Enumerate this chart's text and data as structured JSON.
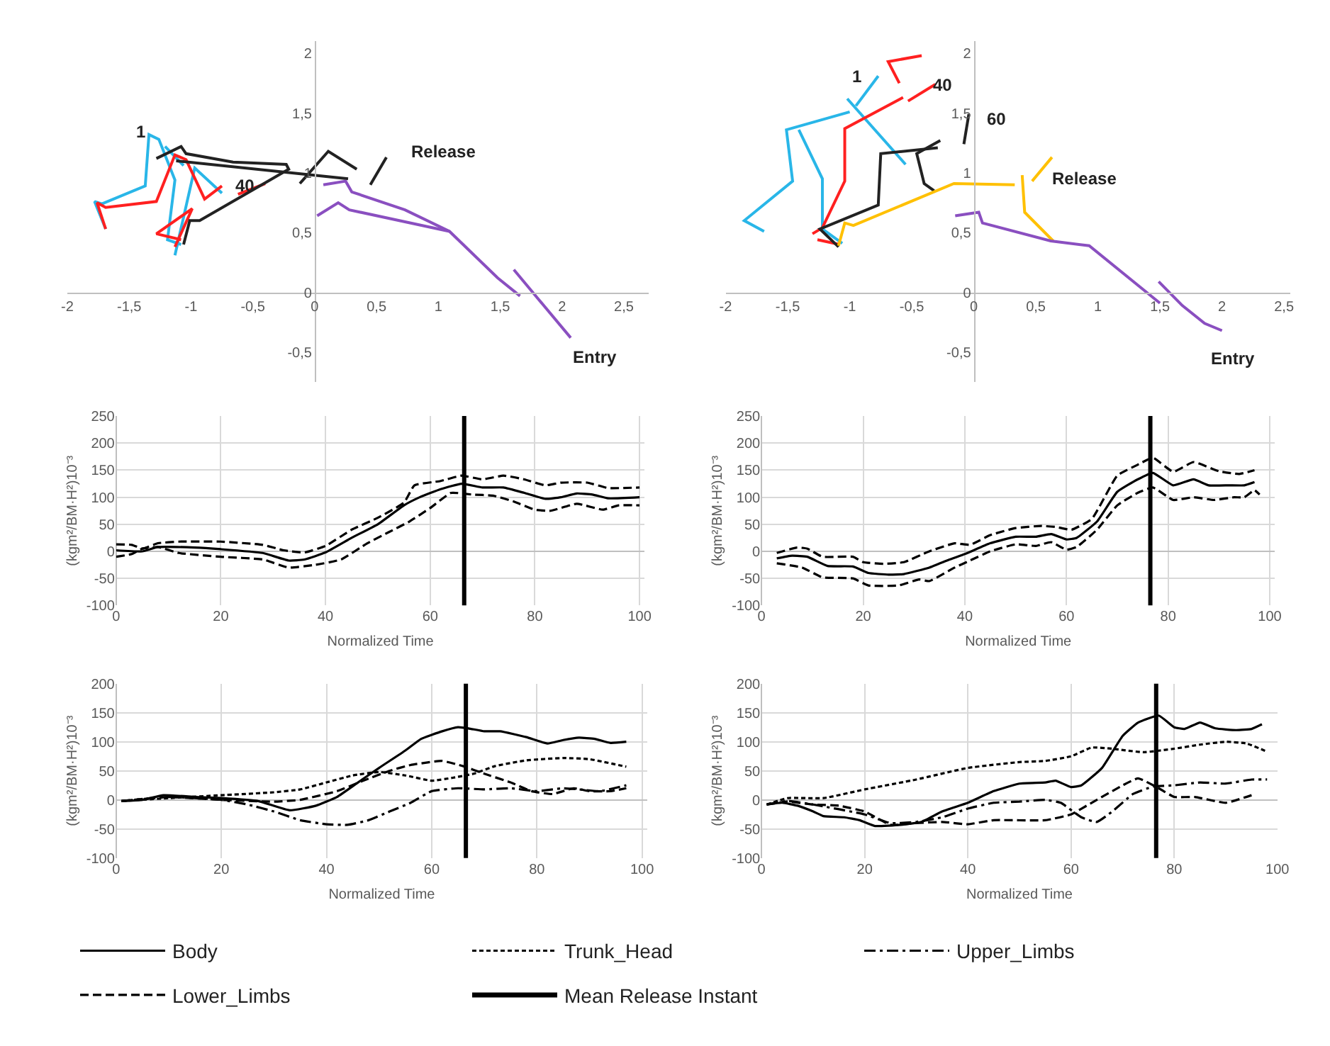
{
  "chart_data": [
    {
      "type": "line",
      "xlim": [
        -2,
        2.7
      ],
      "ylim": [
        -0.75,
        2.1
      ],
      "grid": false,
      "xticks": [
        -2,
        {
          "value": -1.5,
          "label": "-1,5"
        },
        -1,
        {
          "value": -0.5,
          "label": "-0,5"
        },
        0,
        {
          "value": 0.5,
          "label": "0,5"
        },
        1,
        {
          "value": 1.5,
          "label": "1,5"
        },
        2,
        {
          "value": 2.5,
          "label": "2,5"
        }
      ],
      "yticks": [
        {
          "value": -0.5,
          "label": "-0,5"
        },
        0,
        {
          "value": 0.5,
          "label": "0,5"
        },
        1,
        {
          "value": 1.5,
          "label": "1,5"
        },
        2
      ],
      "series": [
        {
          "color": "#29b6e8",
          "x": [
            -1.69,
            -1.78,
            -1.72,
            -1.37,
            -1.34,
            -1.26,
            -1.13,
            -1.19,
            -1.08,
            null,
            -1.13,
            -0.97,
            -0.75,
            null,
            -1.21,
            -1.06
          ],
          "values": [
            0.53,
            0.76,
            0.74,
            0.89,
            1.32,
            1.28,
            0.94,
            0.44,
            0.4,
            null,
            0.31,
            1.04,
            0.83,
            null,
            1.22,
            1.06
          ]
        },
        {
          "color": "#ff2020",
          "x": [
            -1.69,
            -1.76,
            -1.69,
            -1.28,
            -1.13,
            -1.04,
            -0.89,
            -0.75,
            null,
            -1.13,
            -0.99,
            -1.28,
            -1.08,
            null,
            -0.62,
            -0.4
          ],
          "values": [
            0.53,
            0.75,
            0.71,
            0.76,
            1.15,
            1.11,
            0.78,
            0.89,
            null,
            0.38,
            0.7,
            0.49,
            0.44,
            null,
            0.82,
            0.91
          ]
        },
        {
          "color": "#222222",
          "x": [
            -1.28,
            -1.08,
            -1.04,
            -0.66,
            -0.23,
            -0.21,
            -0.93,
            -1.01,
            -1.06,
            null,
            -1.12,
            0.27,
            null,
            -0.12,
            0.11,
            0.34,
            null,
            0.45,
            0.58
          ],
          "values": [
            1.12,
            1.22,
            1.16,
            1.09,
            1.07,
            1.03,
            0.6,
            0.6,
            0.4,
            null,
            1.1,
            0.95,
            null,
            0.91,
            1.18,
            1.03,
            null,
            0.9,
            1.13
          ]
        },
        {
          "color": "#8a4fc0",
          "x": [
            0.07,
            0.25,
            0.3,
            0.73,
            1.09,
            1.48,
            1.66,
            null,
            0.02,
            0.19,
            0.28,
            1.09,
            null,
            1.61,
            2.07
          ],
          "values": [
            0.9,
            0.93,
            0.84,
            0.69,
            0.51,
            0.12,
            -0.03,
            null,
            0.64,
            0.75,
            0.69,
            0.51,
            null,
            0.19,
            -0.38
          ]
        }
      ],
      "annotations": [
        "1",
        "40",
        "Release",
        "Entry"
      ]
    },
    {
      "type": "line",
      "xlim": [
        -2,
        2.55
      ],
      "ylim": [
        -0.75,
        2.1
      ],
      "grid": false,
      "xticks": [
        -2,
        {
          "value": -1.5,
          "label": "-1,5"
        },
        -1,
        {
          "value": -0.5,
          "label": "-0,5"
        },
        0,
        {
          "value": 0.5,
          "label": "0,5"
        },
        1,
        {
          "value": 1.5,
          "label": "1,5"
        },
        2,
        {
          "value": 2.5,
          "label": "2,5"
        }
      ],
      "yticks": [
        {
          "value": -0.5,
          "label": "-0,5"
        },
        0,
        {
          "value": 0.5,
          "label": "0,5"
        },
        1,
        {
          "value": 1.5,
          "label": "1,5"
        },
        2
      ],
      "series": [
        {
          "color": "#29b6e8",
          "x": [
            -1.69,
            -1.85,
            -1.46,
            -1.51,
            -1.0,
            null,
            -1.41,
            -1.22,
            -1.22,
            -1.06,
            null,
            -1.02,
            -0.55,
            null,
            -0.95,
            -0.77
          ],
          "values": [
            0.51,
            0.6,
            0.93,
            1.36,
            1.51,
            null,
            1.36,
            0.95,
            0.53,
            0.41,
            null,
            1.62,
            1.07,
            null,
            1.56,
            1.81
          ]
        },
        {
          "color": "#ff2020",
          "x": [
            -1.3,
            -1.22,
            -1.04,
            -1.04,
            -0.57,
            null,
            -0.53,
            -0.31,
            null,
            -0.6,
            -0.69,
            -0.42,
            null,
            -1.26,
            -1.08
          ],
          "values": [
            0.49,
            0.54,
            0.93,
            1.37,
            1.63,
            null,
            1.6,
            1.74,
            null,
            1.75,
            1.93,
            1.98,
            null,
            0.44,
            0.4
          ]
        },
        {
          "color": "#222222",
          "x": [
            -1.09,
            -1.24,
            -0.77,
            -0.75,
            -0.29,
            null,
            -0.27,
            -0.46,
            -0.4,
            -0.32,
            null,
            -0.08,
            -0.04
          ],
          "values": [
            0.38,
            0.53,
            0.73,
            1.16,
            1.21,
            null,
            1.27,
            1.16,
            0.91,
            0.85,
            null,
            1.24,
            1.49
          ]
        },
        {
          "color": "#ffc000",
          "x": [
            -1.09,
            -1.04,
            -0.97,
            -0.16,
            0.33,
            null,
            0.39,
            0.41,
            0.64,
            null,
            0.47,
            0.63
          ],
          "values": [
            0.39,
            0.58,
            0.56,
            0.91,
            0.9,
            null,
            0.98,
            0.67,
            0.43,
            null,
            0.93,
            1.13
          ]
        },
        {
          "color": "#8a4fc0",
          "x": [
            -0.15,
            0.04,
            0.07,
            0.62,
            0.93,
            1.5,
            null,
            1.49,
            1.68,
            1.86,
            2.0
          ],
          "values": [
            0.64,
            0.67,
            0.58,
            0.43,
            0.39,
            -0.09,
            null,
            0.09,
            -0.11,
            -0.26,
            -0.32
          ]
        }
      ],
      "annotations": [
        "1",
        "40",
        "60",
        "Release",
        "Entry"
      ]
    },
    {
      "type": "line",
      "xlim": [
        0,
        101
      ],
      "ylim": [
        -100,
        250
      ],
      "xticks": [
        0,
        20,
        40,
        60,
        80,
        100
      ],
      "yticks": [
        -100,
        -50,
        0,
        50,
        100,
        150,
        200,
        250
      ],
      "grid": true,
      "xlabel": "Normalized Time",
      "ylabel": "(kgm²/BM·H²)10⁻³",
      "ref_lines": [
        {
          "axis": "x",
          "value": 66.5,
          "color": "#000000",
          "line_style": "solid"
        }
      ],
      "series": [
        {
          "color": "#000000",
          "line_style": "solid",
          "x": [
            0,
            5,
            8,
            15,
            20,
            28,
            33,
            36,
            40,
            45,
            50,
            55,
            58,
            62,
            66,
            70,
            74,
            78,
            82,
            85,
            88,
            91,
            94,
            100
          ],
          "values": [
            2,
            0,
            8,
            7,
            4,
            -3,
            -17,
            -15,
            -2,
            25,
            50,
            85,
            100,
            115,
            125,
            118,
            118,
            108,
            97,
            100,
            107,
            105,
            98,
            100
          ]
        },
        {
          "color": "#000000",
          "line_style": "dashed",
          "x": [
            0,
            3,
            5,
            8,
            12,
            20,
            28,
            32,
            36,
            40,
            45,
            50,
            55,
            57,
            62,
            66,
            70,
            74,
            78,
            82,
            85,
            90,
            94,
            100
          ],
          "values": [
            13,
            12,
            5,
            15,
            18,
            18,
            12,
            2,
            -2,
            10,
            40,
            62,
            90,
            122,
            130,
            140,
            133,
            140,
            133,
            122,
            127,
            127,
            117,
            118
          ]
        },
        {
          "color": "#000000",
          "line_style": "dashed",
          "x": [
            0,
            3,
            5,
            8,
            12,
            20,
            28,
            33,
            38,
            43,
            48,
            52,
            56,
            60,
            64,
            68,
            72,
            76,
            80,
            83,
            88,
            93,
            96,
            100
          ],
          "values": [
            -10,
            -5,
            5,
            8,
            -3,
            -10,
            -15,
            -30,
            -25,
            -15,
            15,
            35,
            55,
            80,
            108,
            105,
            103,
            92,
            77,
            75,
            88,
            77,
            85,
            85
          ]
        }
      ]
    },
    {
      "type": "line",
      "xlim": [
        0,
        101
      ],
      "ylim": [
        -100,
        250
      ],
      "xticks": [
        0,
        20,
        40,
        60,
        80,
        100
      ],
      "yticks": [
        -100,
        -50,
        0,
        50,
        100,
        150,
        200,
        250
      ],
      "grid": true,
      "xlabel": "Normalized Time",
      "ylabel": "(kgm²/BM·H²)10⁻³",
      "ref_lines": [
        {
          "axis": "x",
          "value": 76.5,
          "color": "#000000",
          "line_style": "solid"
        }
      ],
      "series": [
        {
          "color": "#000000",
          "line_style": "solid",
          "x": [
            3,
            6,
            9,
            13,
            18,
            21,
            25,
            28,
            33,
            37,
            40,
            45,
            50,
            54,
            57,
            60,
            62,
            66,
            70,
            74,
            77,
            81,
            85,
            88,
            92,
            95,
            97
          ],
          "values": [
            -13,
            -8,
            -10,
            -27,
            -28,
            -40,
            -43,
            -42,
            -30,
            -15,
            -5,
            15,
            27,
            27,
            32,
            22,
            25,
            55,
            110,
            133,
            145,
            122,
            133,
            122,
            122,
            122,
            128
          ]
        },
        {
          "color": "#000000",
          "line_style": "dashed",
          "x": [
            3,
            7,
            9,
            12,
            18,
            20,
            24,
            28,
            33,
            38,
            41,
            45,
            50,
            55,
            58,
            61,
            65,
            70,
            74,
            77,
            81,
            85,
            90,
            94,
            97
          ],
          "values": [
            -3,
            7,
            5,
            -10,
            -10,
            -20,
            -23,
            -20,
            0,
            15,
            12,
            30,
            43,
            47,
            45,
            40,
            60,
            140,
            160,
            173,
            147,
            165,
            148,
            143,
            150
          ]
        },
        {
          "color": "#000000",
          "line_style": "dashed",
          "x": [
            3,
            8,
            12,
            18,
            21,
            27,
            31,
            33,
            38,
            41,
            45,
            50,
            54,
            57,
            60,
            62,
            66,
            70,
            74,
            77,
            81,
            85,
            89,
            93,
            95,
            97,
            98
          ],
          "values": [
            -22,
            -30,
            -48,
            -50,
            -63,
            -63,
            -52,
            -55,
            -30,
            -17,
            0,
            13,
            10,
            17,
            3,
            8,
            40,
            85,
            108,
            118,
            95,
            100,
            95,
            100,
            100,
            113,
            105
          ]
        }
      ]
    },
    {
      "type": "line",
      "xlim": [
        0,
        101
      ],
      "ylim": [
        -100,
        200
      ],
      "xticks": [
        0,
        20,
        40,
        60,
        80,
        100
      ],
      "yticks": [
        -100,
        -50,
        0,
        50,
        100,
        150,
        200
      ],
      "grid": true,
      "xlabel": "Normalized Time",
      "ylabel": "(kgm²/BM·H²)10⁻³",
      "legend": "bottom",
      "ref_lines": [
        {
          "axis": "x",
          "value": 66.5,
          "color": "#000000",
          "line_style": "solid",
          "label": "Mean Release Instant"
        }
      ],
      "series": [
        {
          "name": "Body",
          "color": "#000000",
          "line_style": "solid",
          "x": [
            1,
            5,
            9,
            15,
            20,
            27,
            33,
            38,
            42,
            46,
            50,
            55,
            58,
            62,
            65,
            67,
            70,
            73,
            78,
            82,
            85,
            88,
            91,
            94,
            97
          ],
          "values": [
            -2,
            0,
            8,
            5,
            3,
            -2,
            -18,
            -10,
            5,
            30,
            55,
            85,
            105,
            118,
            125,
            123,
            118,
            118,
            108,
            97,
            103,
            107,
            105,
            98,
            100
          ]
        },
        {
          "name": "Trunk_Head",
          "color": "#000000",
          "line_style": "dotted",
          "x": [
            1,
            10,
            20,
            30,
            35,
            40,
            45,
            50,
            55,
            60,
            64,
            68,
            72,
            78,
            85,
            90,
            97
          ],
          "values": [
            -2,
            3,
            8,
            13,
            18,
            30,
            42,
            48,
            42,
            33,
            38,
            45,
            58,
            68,
            72,
            70,
            57
          ]
        },
        {
          "name": "Upper_Limbs",
          "color": "#000000",
          "line_style": "dashdot",
          "x": [
            1,
            10,
            20,
            25,
            30,
            35,
            40,
            44,
            48,
            52,
            56,
            60,
            65,
            70,
            75,
            80,
            85,
            88,
            92,
            97
          ],
          "values": [
            -2,
            5,
            0,
            -8,
            -20,
            -35,
            -42,
            -43,
            -35,
            -20,
            -5,
            15,
            20,
            18,
            20,
            15,
            20,
            18,
            15,
            25
          ]
        },
        {
          "name": "Lower_Limbs",
          "color": "#000000",
          "line_style": "dashed",
          "x": [
            1,
            10,
            20,
            30,
            35,
            42,
            47,
            52,
            56,
            62,
            66,
            70,
            75,
            79,
            83,
            87,
            90,
            94,
            97
          ],
          "values": [
            -2,
            5,
            0,
            -3,
            0,
            15,
            33,
            50,
            60,
            67,
            58,
            45,
            30,
            15,
            10,
            20,
            15,
            15,
            20
          ]
        }
      ]
    },
    {
      "type": "line",
      "xlim": [
        0,
        100
      ],
      "ylim": [
        -100,
        200
      ],
      "xticks": [
        0,
        20,
        40,
        60,
        80,
        100
      ],
      "yticks": [
        -100,
        -50,
        0,
        50,
        100,
        150,
        200
      ],
      "grid": true,
      "xlabel": "Normalized Time",
      "ylabel": "(kgm²/BM·H²)10⁻³",
      "ref_lines": [
        {
          "axis": "x",
          "value": 76.5,
          "color": "#000000",
          "line_style": "solid"
        }
      ],
      "series": [
        {
          "color": "#000000",
          "line_style": "solid",
          "x": [
            1,
            4,
            7,
            10,
            12,
            16,
            19,
            22,
            27,
            31,
            35,
            40,
            45,
            50,
            55,
            57,
            60,
            62,
            66,
            70,
            73,
            77,
            80,
            82,
            85,
            88,
            92,
            95,
            97
          ],
          "values": [
            -8,
            -5,
            -10,
            -20,
            -28,
            -30,
            -35,
            -45,
            -43,
            -38,
            -20,
            -5,
            15,
            28,
            30,
            33,
            22,
            25,
            55,
            110,
            133,
            145,
            125,
            122,
            133,
            123,
            120,
            122,
            130
          ]
        },
        {
          "color": "#000000",
          "line_style": "dotted",
          "x": [
            1,
            5,
            12,
            20,
            30,
            40,
            50,
            55,
            60,
            64,
            68,
            74,
            80,
            85,
            90,
            94,
            98
          ],
          "values": [
            -8,
            3,
            3,
            18,
            35,
            55,
            65,
            67,
            75,
            90,
            88,
            82,
            88,
            95,
            100,
            97,
            83
          ]
        },
        {
          "color": "#000000",
          "line_style": "dashdot",
          "x": [
            1,
            5,
            10,
            20,
            25,
            30,
            35,
            40,
            45,
            50,
            55,
            58,
            62,
            65,
            68,
            72,
            76,
            80,
            85,
            90,
            95,
            98
          ],
          "values": [
            -8,
            -2,
            -8,
            -25,
            -40,
            -38,
            -30,
            -15,
            -5,
            -3,
            0,
            -5,
            -30,
            -38,
            -20,
            10,
            23,
            25,
            30,
            28,
            35,
            35
          ]
        },
        {
          "color": "#000000",
          "line_style": "dashed",
          "x": [
            1,
            5,
            10,
            15,
            20,
            25,
            30,
            35,
            40,
            45,
            55,
            60,
            64,
            70,
            73,
            77,
            80,
            84,
            90,
            95
          ],
          "values": [
            -8,
            -3,
            -8,
            -10,
            -20,
            -43,
            -40,
            -38,
            -42,
            -35,
            -35,
            -25,
            -5,
            25,
            37,
            20,
            5,
            5,
            -5,
            8
          ]
        }
      ]
    }
  ]
}
